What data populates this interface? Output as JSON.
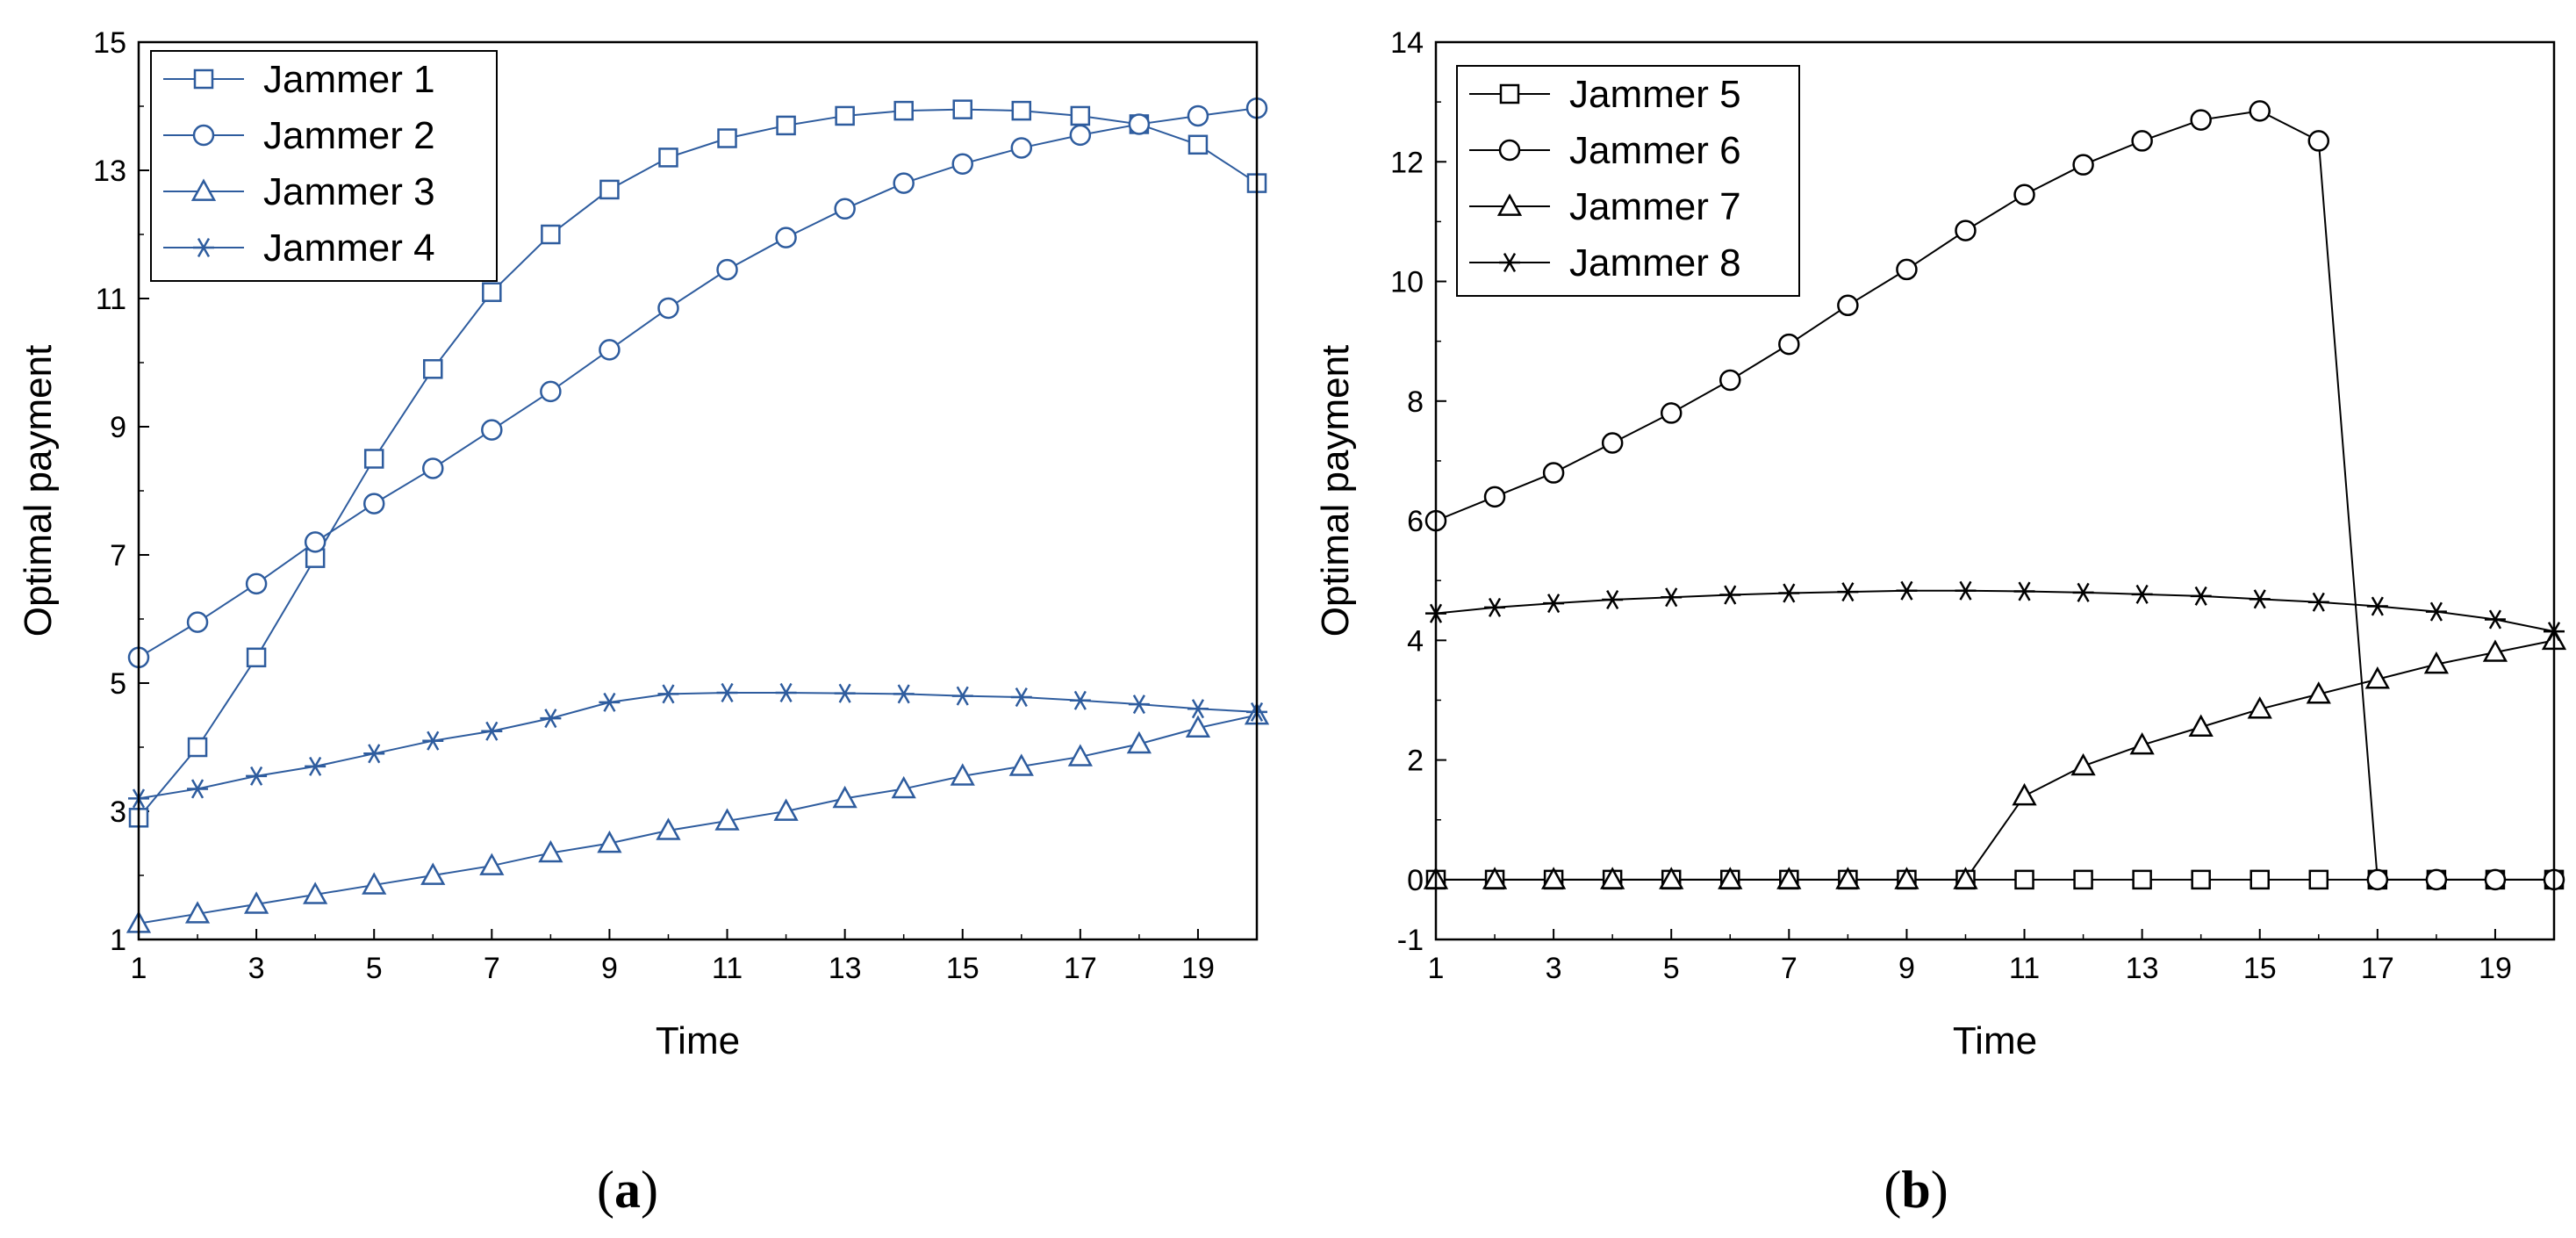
{
  "chart_data": [
    {
      "type": "line",
      "panel_label": "(a)",
      "title": "",
      "xlabel": "Time",
      "ylabel": "Optimal payment",
      "xlim": [
        1,
        20
      ],
      "ylim": [
        1,
        15
      ],
      "xticks": [
        1,
        3,
        5,
        7,
        9,
        11,
        13,
        15,
        17,
        19
      ],
      "yticks": [
        1,
        3,
        5,
        7,
        9,
        11,
        13,
        15
      ],
      "color": "#2e5c9e",
      "legend_position": "top-left",
      "x": [
        1,
        2,
        3,
        4,
        5,
        6,
        7,
        8,
        9,
        10,
        11,
        12,
        13,
        14,
        15,
        16,
        17,
        18,
        19,
        20
      ],
      "series": [
        {
          "name": "Jammer 1",
          "marker": "square",
          "values": [
            2.9,
            4.0,
            5.4,
            6.95,
            8.5,
            9.9,
            11.1,
            12.0,
            12.7,
            13.2,
            13.5,
            13.7,
            13.85,
            13.93,
            13.95,
            13.93,
            13.85,
            13.72,
            13.4,
            12.8
          ]
        },
        {
          "name": "Jammer 2",
          "marker": "circle",
          "values": [
            5.4,
            5.95,
            6.55,
            7.2,
            7.8,
            8.35,
            8.95,
            9.55,
            10.2,
            10.85,
            11.45,
            11.95,
            12.4,
            12.8,
            13.1,
            13.35,
            13.55,
            13.72,
            13.85,
            13.97
          ]
        },
        {
          "name": "Jammer 3",
          "marker": "triangle",
          "values": [
            1.25,
            1.4,
            1.55,
            1.7,
            1.85,
            2.0,
            2.15,
            2.35,
            2.5,
            2.7,
            2.85,
            3.0,
            3.2,
            3.35,
            3.55,
            3.7,
            3.85,
            4.05,
            4.3,
            4.5
          ]
        },
        {
          "name": "Jammer 4",
          "marker": "star",
          "values": [
            3.2,
            3.35,
            3.55,
            3.7,
            3.9,
            4.1,
            4.25,
            4.45,
            4.7,
            4.83,
            4.85,
            4.85,
            4.84,
            4.83,
            4.8,
            4.78,
            4.73,
            4.67,
            4.6,
            4.55
          ]
        }
      ]
    },
    {
      "type": "line",
      "panel_label": "(b)",
      "title": "",
      "xlabel": "Time",
      "ylabel": "Optimal payment",
      "xlim": [
        1,
        20
      ],
      "ylim": [
        -1,
        14
      ],
      "xticks": [
        1,
        3,
        5,
        7,
        9,
        11,
        13,
        15,
        17,
        19
      ],
      "yticks": [
        0,
        2,
        4,
        6,
        8,
        10,
        12,
        14
      ],
      "color": "#000000",
      "legend_position": "top-left",
      "x": [
        1,
        2,
        3,
        4,
        5,
        6,
        7,
        8,
        9,
        10,
        11,
        12,
        13,
        14,
        15,
        16,
        17,
        18,
        19,
        20
      ],
      "series": [
        {
          "name": "Jammer 5",
          "marker": "square",
          "values": [
            0,
            0,
            0,
            0,
            0,
            0,
            0,
            0,
            0,
            0,
            0,
            0,
            0,
            0,
            0,
            0,
            0,
            0,
            0,
            0
          ]
        },
        {
          "name": "Jammer 6",
          "marker": "circle",
          "values": [
            6.0,
            6.4,
            6.8,
            7.3,
            7.8,
            8.35,
            8.95,
            9.6,
            10.2,
            10.85,
            11.45,
            11.95,
            12.35,
            12.7,
            12.85,
            12.35,
            0,
            0,
            0,
            0
          ]
        },
        {
          "name": "Jammer 7",
          "marker": "triangle",
          "values": [
            0,
            0,
            0,
            0,
            0,
            0,
            0,
            0,
            0,
            0,
            1.4,
            1.9,
            2.25,
            2.55,
            2.85,
            3.1,
            3.35,
            3.6,
            3.8,
            4.0
          ]
        },
        {
          "name": "Jammer 8",
          "marker": "star",
          "values": [
            4.45,
            4.55,
            4.62,
            4.68,
            4.72,
            4.76,
            4.79,
            4.81,
            4.83,
            4.83,
            4.82,
            4.8,
            4.77,
            4.74,
            4.69,
            4.64,
            4.57,
            4.48,
            4.35,
            4.15
          ]
        }
      ]
    }
  ]
}
